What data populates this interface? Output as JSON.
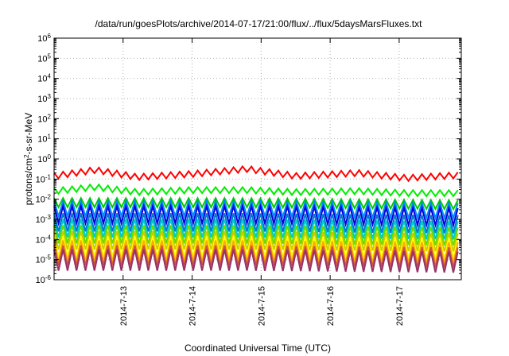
{
  "chart_data": {
    "type": "line",
    "title": "/data/run/goesPlots/archive/2014-07-17/21:00/flux/../flux/5daysMarsFluxes.txt",
    "xlabel": "Coordinated Universal Time (UTC)",
    "ylabel_parts": {
      "base": "protons/cm",
      "sup": "2",
      "rest": "-s-sr-MeV"
    },
    "y_scale": "log",
    "ylim": [
      1e-06,
      1000000.0
    ],
    "y_tick_exponents": [
      -6,
      -5,
      -4,
      -3,
      -2,
      -1,
      0,
      1,
      2,
      3,
      4,
      5,
      6
    ],
    "xlim": [
      0,
      5.9
    ],
    "x_ticks": [
      {
        "label": "2014-7-13",
        "value": 1.0
      },
      {
        "label": "2014-7-14",
        "value": 2.0
      },
      {
        "label": "2014-7-15",
        "value": 3.0
      },
      {
        "label": "2014-7-16",
        "value": 4.0
      },
      {
        "label": "2014-7-17",
        "value": 5.0
      }
    ],
    "grid": true,
    "series_style": "sawtooth",
    "series": [
      {
        "color": "#ff0000",
        "log_low": -1.0,
        "log_high": -0.7,
        "period": 0.13,
        "trend": [
          [
            0,
            0.0
          ],
          [
            0.6,
            0.3
          ],
          [
            1.2,
            -0.05
          ],
          [
            2.0,
            0.1
          ],
          [
            2.8,
            0.35
          ],
          [
            3.5,
            0.0
          ],
          [
            4.4,
            0.15
          ],
          [
            5.1,
            -0.1
          ],
          [
            5.9,
            0.05
          ]
        ]
      },
      {
        "color": "#00ee00",
        "log_low": -1.75,
        "log_high": -1.45,
        "period": 0.13,
        "trend": [
          [
            0,
            0.0
          ],
          [
            0.6,
            0.2
          ],
          [
            1.2,
            -0.05
          ],
          [
            2.0,
            0.05
          ],
          [
            2.8,
            0.05
          ],
          [
            3.5,
            -0.05
          ],
          [
            4.4,
            0.0
          ],
          [
            5.1,
            -0.1
          ],
          [
            5.9,
            -0.1
          ]
        ]
      },
      {
        "color": "#00cc00",
        "log_low": -2.4,
        "log_high": -1.95,
        "period": 0.13,
        "trend": [
          [
            0,
            0.0
          ],
          [
            1.2,
            0.0
          ],
          [
            2.8,
            0.0
          ],
          [
            5.9,
            -0.1
          ]
        ]
      },
      {
        "color": "#0088ff",
        "log_low": -2.85,
        "log_high": -2.1,
        "period": 0.13,
        "trend": [
          [
            0,
            0.0
          ],
          [
            1.2,
            0.0
          ],
          [
            2.8,
            0.0
          ],
          [
            5.9,
            -0.1
          ]
        ]
      },
      {
        "color": "#0000dd",
        "log_low": -3.2,
        "log_high": -2.35,
        "period": 0.13,
        "trend": [
          [
            0,
            0.0
          ],
          [
            1.2,
            0.0
          ],
          [
            2.8,
            0.0
          ],
          [
            5.9,
            -0.1
          ]
        ]
      },
      {
        "color": "#0077cc",
        "log_low": -3.6,
        "log_high": -2.7,
        "period": 0.13,
        "trend": [
          [
            0,
            0.0
          ],
          [
            1.2,
            0.0
          ],
          [
            2.8,
            0.0
          ],
          [
            5.9,
            -0.1
          ]
        ]
      },
      {
        "color": "#00cccc",
        "log_low": -3.9,
        "log_high": -3.0,
        "period": 0.13,
        "trend": [
          [
            0,
            0.0
          ],
          [
            2.8,
            0.0
          ],
          [
            5.9,
            -0.1
          ]
        ]
      },
      {
        "color": "#66dd00",
        "log_low": -4.2,
        "log_high": -3.3,
        "period": 0.13,
        "trend": [
          [
            0,
            0.0
          ],
          [
            2.8,
            0.0
          ],
          [
            5.9,
            -0.1
          ]
        ]
      },
      {
        "color": "#cccc00",
        "log_low": -4.5,
        "log_high": -3.6,
        "period": 0.13,
        "trend": [
          [
            0,
            0.0
          ],
          [
            2.8,
            0.0
          ],
          [
            5.9,
            -0.1
          ]
        ]
      },
      {
        "color": "#ffff00",
        "log_low": -4.85,
        "log_high": -3.85,
        "period": 0.13,
        "trend": [
          [
            0,
            0.0
          ],
          [
            2.8,
            0.0
          ],
          [
            5.9,
            -0.1
          ]
        ]
      },
      {
        "color": "#ffaa00",
        "log_low": -5.1,
        "log_high": -4.05,
        "period": 0.13,
        "trend": [
          [
            0,
            0.0
          ],
          [
            2.8,
            0.0
          ],
          [
            5.9,
            -0.1
          ]
        ]
      },
      {
        "color": "#cc5544",
        "log_low": -5.3,
        "log_high": -4.3,
        "period": 0.13,
        "trend": [
          [
            0,
            0.0
          ],
          [
            2.8,
            0.0
          ],
          [
            5.9,
            -0.1
          ]
        ]
      },
      {
        "color": "#993366",
        "log_low": -5.55,
        "log_high": -4.5,
        "period": 0.13,
        "trend": [
          [
            0,
            0.0
          ],
          [
            2.8,
            0.0
          ],
          [
            5.9,
            -0.1
          ]
        ]
      }
    ]
  }
}
